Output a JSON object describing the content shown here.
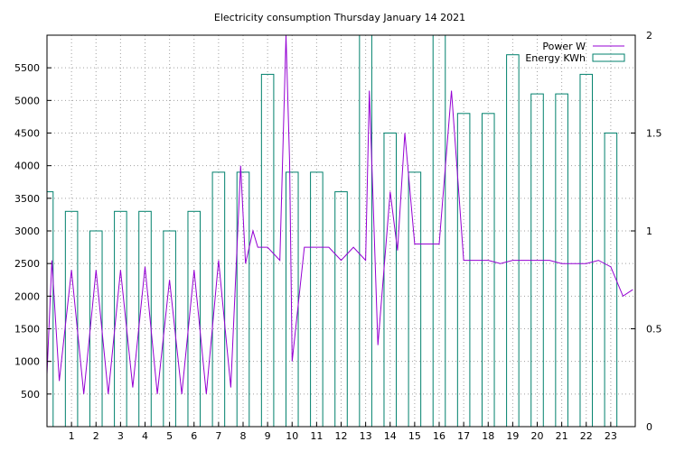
{
  "chart_data": {
    "type": "line",
    "title": "Electricity consumption Thursday January 14 2021",
    "x": {
      "range": [
        0,
        24
      ],
      "ticks": [
        1,
        2,
        3,
        4,
        5,
        6,
        7,
        8,
        9,
        10,
        11,
        12,
        13,
        14,
        15,
        16,
        17,
        18,
        19,
        20,
        21,
        22,
        23
      ],
      "grid": true
    },
    "y_left": {
      "range": [
        0,
        6000
      ],
      "ticks": [
        500,
        1000,
        1500,
        2000,
        2500,
        3000,
        3500,
        4000,
        4500,
        5000,
        5500
      ],
      "grid": true
    },
    "y_right": {
      "range": [
        0,
        2
      ],
      "ticks": [
        "0",
        "0.5",
        "1",
        "1.5",
        "2"
      ]
    },
    "legend_position": "top-right",
    "series": [
      {
        "name": "Power W",
        "axis": "left",
        "color": "#9400d3",
        "style": "line",
        "sample_points": [
          [
            0.0,
            800
          ],
          [
            0.2,
            2550
          ],
          [
            0.5,
            700
          ],
          [
            1.0,
            2400
          ],
          [
            1.5,
            500
          ],
          [
            2.0,
            2400
          ],
          [
            2.5,
            500
          ],
          [
            3.0,
            2400
          ],
          [
            3.5,
            600
          ],
          [
            4.0,
            2450
          ],
          [
            4.5,
            500
          ],
          [
            5.0,
            2250
          ],
          [
            5.5,
            500
          ],
          [
            6.0,
            2400
          ],
          [
            6.5,
            500
          ],
          [
            7.0,
            2550
          ],
          [
            7.5,
            600
          ],
          [
            7.9,
            4000
          ],
          [
            8.1,
            2500
          ],
          [
            8.4,
            3000
          ],
          [
            8.6,
            2750
          ],
          [
            9.0,
            2750
          ],
          [
            9.5,
            2550
          ],
          [
            9.75,
            6000
          ],
          [
            9.9,
            4050
          ],
          [
            10.0,
            1000
          ],
          [
            10.5,
            2750
          ],
          [
            11.0,
            2750
          ],
          [
            11.5,
            2750
          ],
          [
            12.0,
            2550
          ],
          [
            12.5,
            2750
          ],
          [
            13.0,
            2550
          ],
          [
            13.15,
            5150
          ],
          [
            13.3,
            3500
          ],
          [
            13.5,
            1250
          ],
          [
            14.0,
            3600
          ],
          [
            14.3,
            2700
          ],
          [
            14.6,
            4500
          ],
          [
            15.0,
            2800
          ],
          [
            15.5,
            2800
          ],
          [
            16.0,
            2800
          ],
          [
            16.5,
            5150
          ],
          [
            17.0,
            2550
          ],
          [
            17.5,
            2550
          ],
          [
            18.0,
            2550
          ],
          [
            18.5,
            2500
          ],
          [
            19.0,
            2550
          ],
          [
            19.5,
            2550
          ],
          [
            20.0,
            2550
          ],
          [
            20.5,
            2550
          ],
          [
            21.0,
            2500
          ],
          [
            21.5,
            2500
          ],
          [
            22.0,
            2500
          ],
          [
            22.5,
            2550
          ],
          [
            23.0,
            2450
          ],
          [
            23.5,
            2000
          ],
          [
            23.9,
            2100
          ]
        ]
      },
      {
        "name": "Energy KWh",
        "axis": "right",
        "color": "#00806c",
        "style": "boxes",
        "hours": [
          0,
          1,
          2,
          3,
          4,
          5,
          6,
          7,
          8,
          9,
          10,
          11,
          12,
          13,
          14,
          15,
          16,
          17,
          18,
          19,
          20,
          21,
          22,
          23
        ],
        "values": [
          1.2,
          1.1,
          1.0,
          1.1,
          1.1,
          1.0,
          1.1,
          1.3,
          1.3,
          1.8,
          1.3,
          1.3,
          1.2,
          2.0,
          1.5,
          1.3,
          2.0,
          1.6,
          1.6,
          1.9,
          1.7,
          1.7,
          1.8,
          1.5
        ]
      }
    ]
  }
}
